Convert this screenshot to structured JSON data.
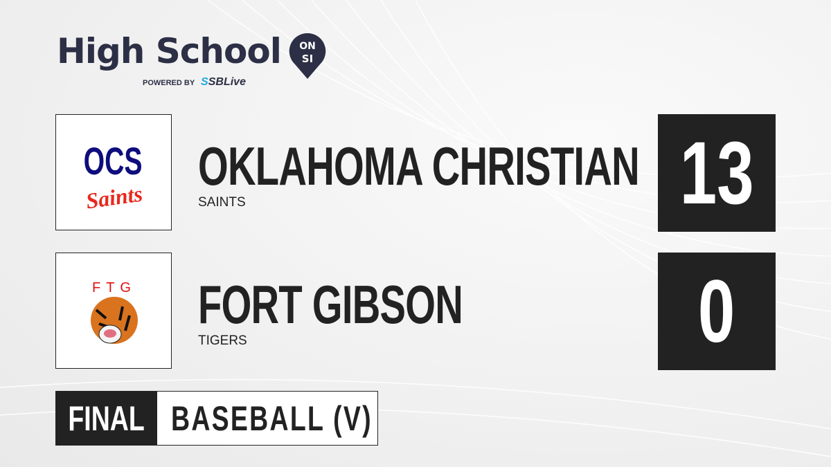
{
  "brand": {
    "title": "High School",
    "badge_top": "ON",
    "badge_bottom": "SI",
    "powered_by": "POWERED BY",
    "partner_prefix": "S",
    "partner": "SBLive"
  },
  "teams": [
    {
      "name": "OKLAHOMA CHRISTIAN",
      "mascot": "SAINTS",
      "score": "13",
      "logo_text_top": "OCS",
      "logo_text_bottom": "Saints"
    },
    {
      "name": "FORT GIBSON",
      "mascot": "TIGERS",
      "score": "0",
      "logo_text_top": "FTG"
    }
  ],
  "game": {
    "status": "FINAL",
    "sport": "BASEBALL (V)"
  },
  "colors": {
    "brand": "#2c2f45",
    "score_bg": "#222222",
    "partner_accent": "#1fa8e0"
  }
}
